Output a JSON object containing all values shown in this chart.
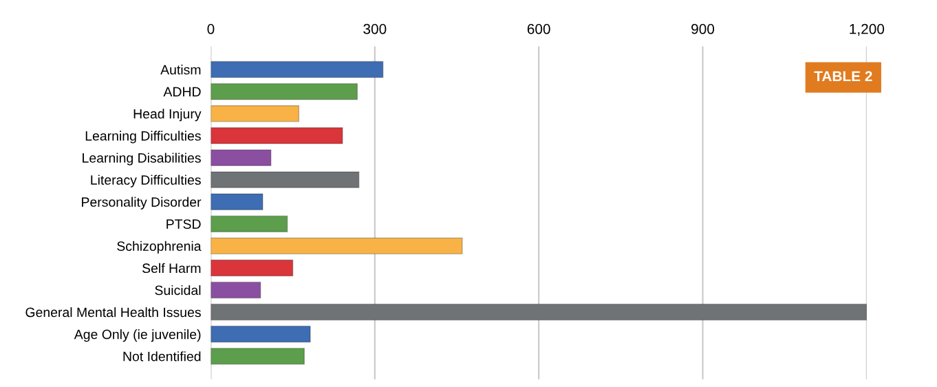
{
  "chart_data": {
    "type": "bar",
    "orientation": "horizontal",
    "categories": [
      "Autism",
      "ADHD",
      "Head Injury",
      "Learning Difficulties",
      "Learning Disabilities",
      "Literacy Difficulties",
      "Personality Disorder",
      "PTSD",
      "Schizophrenia",
      "Self Harm",
      "Suicidal",
      "General Mental Health Issues",
      "Age Only (ie juvenile)",
      "Not Identified"
    ],
    "values": [
      315,
      268,
      161,
      241,
      110,
      271,
      95,
      140,
      460,
      150,
      91,
      1200,
      182,
      171
    ],
    "colors": [
      "#3e6db3",
      "#5c9e4c",
      "#f8b245",
      "#d9353b",
      "#8b4fa1",
      "#707375",
      "#3e6db3",
      "#5c9e4c",
      "#f8b245",
      "#d9353b",
      "#8b4fa1",
      "#707375",
      "#3e6db3",
      "#5c9e4c"
    ],
    "xlim": [
      0,
      1200
    ],
    "xticks": [
      0,
      300,
      600,
      900,
      {
        "value": 1200,
        "label": "1,200"
      }
    ],
    "grid": "x",
    "annotations": [
      "TABLE 2"
    ]
  }
}
